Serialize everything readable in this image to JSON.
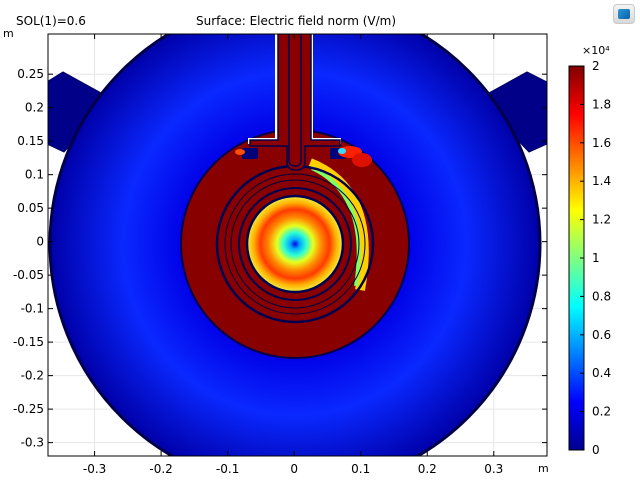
{
  "header": {
    "solution_label": "SOL(1)=0.6",
    "app_icon": "comsol-window-icon"
  },
  "chart_data": {
    "type": "heatmap",
    "title": "Surface: Electric field norm (V/m)",
    "x_unit": "m",
    "y_unit": "m",
    "xlim": [
      -0.37,
      0.38
    ],
    "ylim": [
      -0.32,
      0.31
    ],
    "x_ticks": [
      -0.3,
      -0.2,
      -0.1,
      0,
      0.1,
      0.2,
      0.3
    ],
    "x_tick_labels": [
      "-0.3",
      "-0.2",
      "-0.1",
      "0",
      "0.1",
      "0.2",
      "0.3"
    ],
    "y_ticks": [
      0.25,
      0.2,
      0.15,
      0.1,
      0.05,
      0,
      -0.05,
      -0.1,
      -0.15,
      -0.2,
      -0.25,
      -0.3
    ],
    "y_tick_labels": [
      "0.25",
      "0.2",
      "0.15",
      "0.1",
      "0.05",
      "0",
      "-0.05",
      "-0.1",
      "-0.15",
      "-0.2",
      "-0.25",
      "-0.3"
    ],
    "grid": true,
    "colorbar": {
      "multiplier": "×10⁴",
      "range": [
        0,
        2
      ],
      "ticks": [
        2,
        1.8,
        1.6,
        1.4,
        1.2,
        1,
        0.8,
        0.6,
        0.4,
        0.2,
        0
      ],
      "tick_labels": [
        "2",
        "1.8",
        "1.6",
        "1.4",
        "1.2",
        "1",
        "0.8",
        "0.6",
        "0.4",
        "0.2",
        "0"
      ],
      "colormap": "jet"
    },
    "field_regions": {
      "outer_domain_radius": 0.365,
      "outer_domain_level": 0.05,
      "inner_conductor_region_radius": 0.17,
      "inner_conductor_region_level": 2,
      "central_pocket_radius": 0.07,
      "central_pocket_min_level": 0,
      "central_pocket_max_level": 1.7
    }
  }
}
